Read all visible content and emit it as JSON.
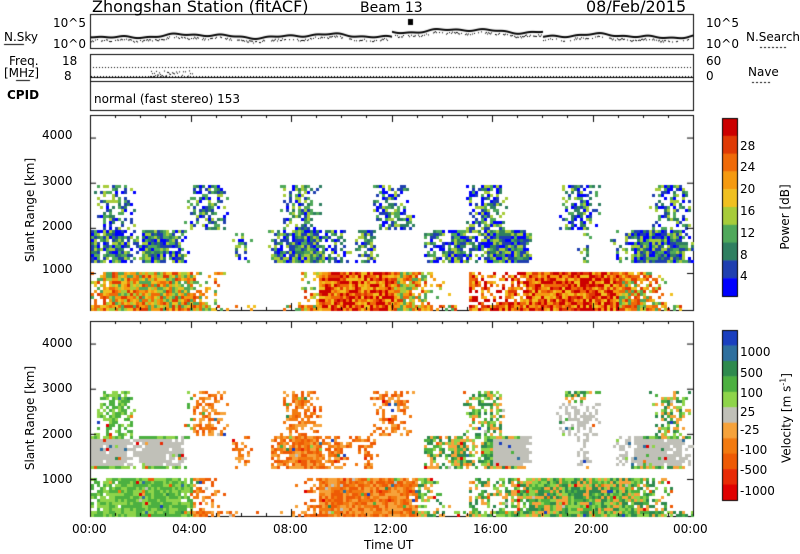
{
  "header": {
    "title": "Zhongshan Station (fitACF)",
    "beam": "Beam 13",
    "date": "08/Feb/2015"
  },
  "noise_panel": {
    "left_label": "N.Sky",
    "left_ticks": [
      "10^5",
      "10^0"
    ],
    "right_label": "N.Search",
    "right_ticks": [
      "10^5",
      "10^0"
    ]
  },
  "freq_panel": {
    "left_label_1": "Freq.",
    "left_label_2": "[MHz]",
    "left_ticks": [
      "18",
      "8"
    ],
    "right_label": "Nave",
    "right_ticks": [
      "60",
      "0"
    ],
    "cpid_label": "CPID",
    "mode_text": "normal (fast stereo) 153"
  },
  "chart_data": [
    {
      "type": "heatmap",
      "title": "",
      "xlabel": "Time UT",
      "ylabel": "Slant Range [km]",
      "xlim": [
        "00:00",
        "24:00"
      ],
      "ylim": [
        180,
        4500
      ],
      "x_tick_labels": [
        "00:00",
        "04:00",
        "08:00",
        "12:00",
        "16:00",
        "20:00",
        "00:00"
      ],
      "y_tick_labels": [
        "1000",
        "2000",
        "3000",
        "4000"
      ],
      "colorbar": {
        "label": "Power [dB]",
        "ticks": [
          "4",
          "8",
          "12",
          "16",
          "20",
          "24",
          "28"
        ],
        "colors": [
          "#0000ff",
          "#1f3fb0",
          "#2f7f60",
          "#4fa85a",
          "#a7cc3a",
          "#f0c020",
          "#f59a10",
          "#ef6a08",
          "#e03a05",
          "#cc0000"
        ]
      },
      "regions": [
        {
          "name": "near-range band",
          "t": [
            0,
            24
          ],
          "range_km": [
            250,
            1000
          ],
          "level": "high"
        },
        {
          "name": "mid-range band",
          "t": [
            0,
            24
          ],
          "range_km": [
            1300,
            2000
          ],
          "level": "low"
        },
        {
          "name": "far-range patches",
          "t": [
            0,
            24
          ],
          "range_km": [
            2000,
            3000
          ],
          "level": "low"
        }
      ]
    },
    {
      "type": "heatmap",
      "title": "",
      "xlabel": "Time UT",
      "ylabel": "Slant Range [km]",
      "xlim": [
        "00:00",
        "24:00"
      ],
      "ylim": [
        180,
        4500
      ],
      "x_tick_labels": [
        "00:00",
        "04:00",
        "08:00",
        "12:00",
        "16:00",
        "20:00",
        "00:00"
      ],
      "y_tick_labels": [
        "1000",
        "2000",
        "3000",
        "4000"
      ],
      "colorbar": {
        "label": "Velocity [m s-1]",
        "label_main": "Velocity  [m s",
        "label_sup": "-1",
        "label_end": "]",
        "ticks": [
          "1000",
          "500",
          "100",
          "25",
          "-25",
          "-100",
          "-500",
          "-1000"
        ],
        "colors": [
          "#1a3fbf",
          "#2e6f9e",
          "#2e8a4e",
          "#4cb040",
          "#8ed44a",
          "#c0c0b8",
          "#f6a23a",
          "#f27a10",
          "#ee5a05",
          "#e82a05",
          "#e00000"
        ]
      },
      "regions": [
        {
          "name": "mid-range ground scatter",
          "t": [
            0,
            24
          ],
          "range_km": [
            1400,
            2000
          ],
          "class": "ground"
        },
        {
          "name": "away flow",
          "t": [
            4,
            12
          ],
          "range_km": [
            300,
            2500
          ],
          "class": "negative"
        },
        {
          "name": "toward flow",
          "t": [
            13,
            24
          ],
          "range_km": [
            300,
            1700
          ],
          "class": "positive"
        }
      ]
    }
  ],
  "x_axis": {
    "label": "Time UT",
    "ticks": [
      "00:00",
      "04:00",
      "08:00",
      "12:00",
      "16:00",
      "20:00",
      "00:00"
    ]
  }
}
